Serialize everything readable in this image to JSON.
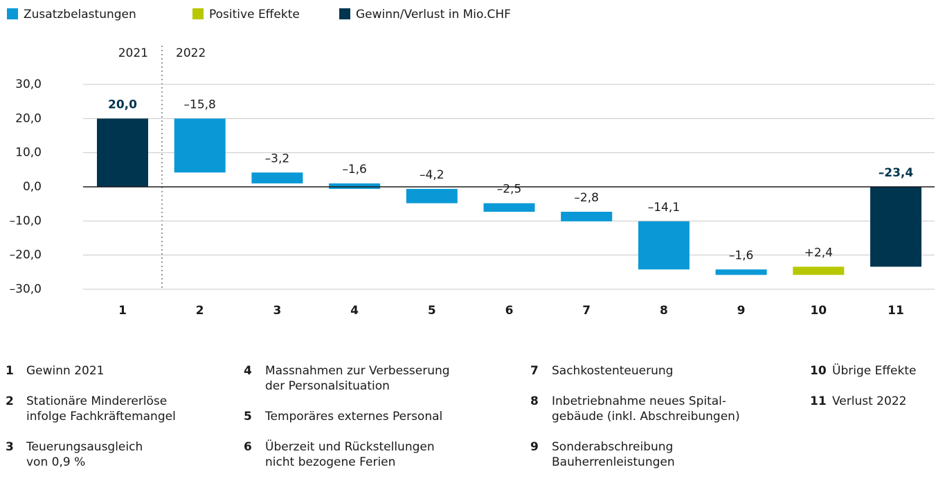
{
  "chart_data": {
    "type": "waterfall",
    "legend": [
      {
        "name": "Zusatzbelastungen",
        "color": "#0a99d6"
      },
      {
        "name": "Positive Effekte",
        "color": "#b8c800"
      },
      {
        "name": "Gewinn/Verlust in Mio.CHF",
        "color": "#00354f"
      }
    ],
    "periods": [
      "2021",
      "2022"
    ],
    "categories": [
      "1",
      "2",
      "3",
      "4",
      "5",
      "6",
      "7",
      "8",
      "9",
      "10",
      "11"
    ],
    "values": [
      20.0,
      -15.8,
      -3.2,
      -1.6,
      -4.2,
      -2.5,
      -2.8,
      -14.1,
      -1.6,
      2.4,
      -23.4
    ],
    "value_labels": [
      "20,0",
      "–15,8",
      "–3,2",
      "–1,6",
      "–4,2",
      "–2,5",
      "–2,8",
      "–14,1",
      "–1,6",
      "+2,4",
      "–23,4"
    ],
    "ylim": [
      -30,
      30
    ],
    "yticks": [
      {
        "value": 30,
        "label": "30,0"
      },
      {
        "value": 20,
        "label": "20,0"
      },
      {
        "value": 10,
        "label": "10,0"
      },
      {
        "value": 0,
        "label": "0,0"
      },
      {
        "value": -10,
        "label": "–10,0"
      },
      {
        "value": -20,
        "label": "–20,0"
      },
      {
        "value": -30,
        "label": "–30,0"
      }
    ],
    "grid": true,
    "notes": [
      {
        "number": "1",
        "lines": [
          "Gewinn 2021"
        ]
      },
      {
        "number": "2",
        "lines": [
          "Stationäre Mindererlöse",
          "infolge Fachkräftemangel"
        ]
      },
      {
        "number": "3",
        "lines": [
          "Teuerungsausgleich",
          "von 0,9 %"
        ]
      },
      {
        "number": "4",
        "lines": [
          "Massnahmen zur Verbesserung",
          "der Personalsituation"
        ]
      },
      {
        "number": "5",
        "lines": [
          "Temporäres externes Personal"
        ]
      },
      {
        "number": "6",
        "lines": [
          "Überzeit und Rückstellungen",
          "nicht bezogene Ferien"
        ]
      },
      {
        "number": "7",
        "lines": [
          "Sachkostenteuerung"
        ]
      },
      {
        "number": "8",
        "lines": [
          "Inbetriebnahme neues Spital-",
          "gebäude (inkl. Abschreibungen)"
        ]
      },
      {
        "number": "9",
        "lines": [
          "Sonderabschreibung",
          "Bauherrenleistungen"
        ]
      },
      {
        "number": "10",
        "lines": [
          "Übrige Effekte"
        ]
      },
      {
        "number": "11",
        "lines": [
          "Verlust 2022"
        ]
      }
    ]
  }
}
